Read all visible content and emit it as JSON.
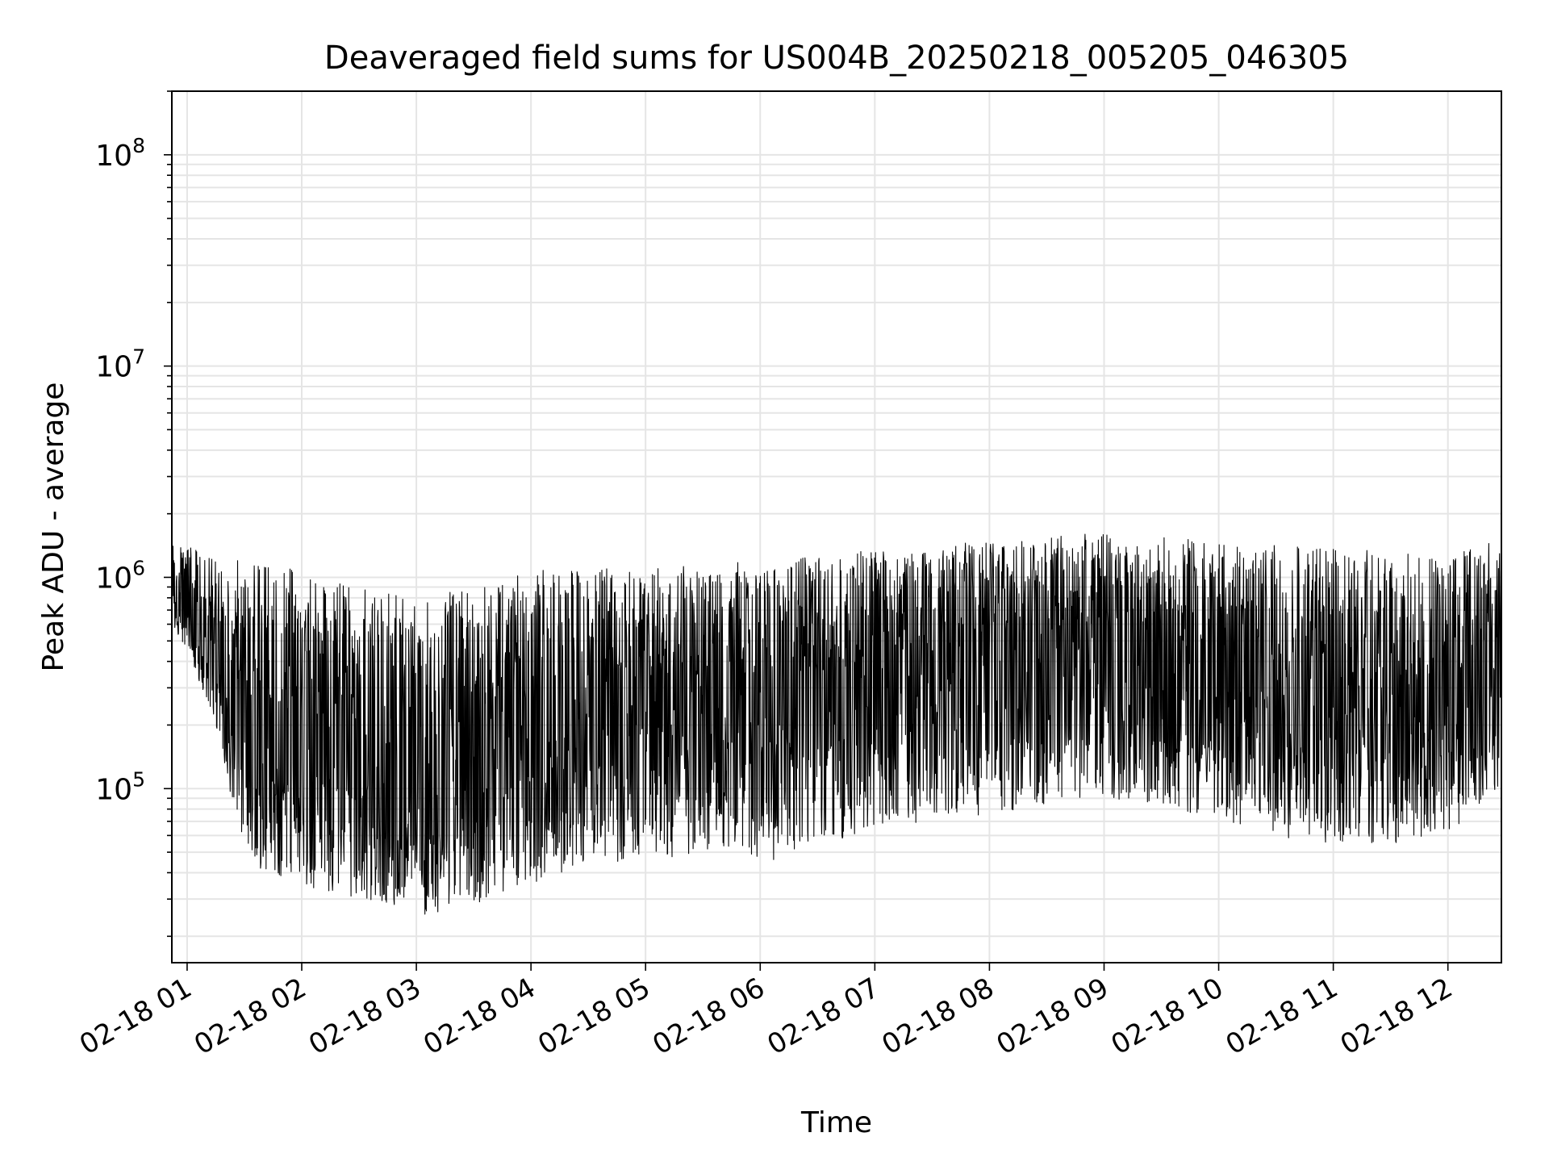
{
  "chart_data": {
    "type": "line",
    "title": "Deaveraged field sums for US004B_20250218_005205_046305",
    "xlabel": "Time",
    "ylabel": "Peak ADU - average",
    "yscale": "log",
    "ylim": [
      15000,
      200000000
    ],
    "xlim": [
      "02-18 00:52",
      "02-18 12:28"
    ],
    "grid": true,
    "line_color": "#000000",
    "grid_color": "#e5e5e5",
    "x_ticks": [
      "02-18 01",
      "02-18 02",
      "02-18 03",
      "02-18 04",
      "02-18 05",
      "02-18 06",
      "02-18 07",
      "02-18 08",
      "02-18 09",
      "02-18 10",
      "02-18 11",
      "02-18 12"
    ],
    "y_ticks": [
      {
        "value": 100000,
        "base": "10",
        "exp": "5"
      },
      {
        "value": 1000000,
        "base": "10",
        "exp": "6"
      },
      {
        "value": 10000000,
        "base": "10",
        "exp": "7"
      },
      {
        "value": 100000000,
        "base": "10",
        "exp": "8"
      }
    ],
    "series": [
      {
        "x": [
          "02-18 00:52",
          "02-18 01:00",
          "02-18 01:15",
          "02-18 01:30",
          "02-18 02:00",
          "02-18 02:30",
          "02-18 03:00",
          "02-18 03:30",
          "02-18 04:00",
          "02-18 04:30",
          "02-18 05:00",
          "02-18 05:30",
          "02-18 06:00",
          "02-18 06:30",
          "02-18 07:00",
          "02-18 07:30",
          "02-18 08:00",
          "02-18 08:30",
          "02-18 09:00",
          "02-18 09:30",
          "02-18 10:00",
          "02-18 10:30",
          "02-18 11:00",
          "02-18 11:30",
          "02-18 12:00",
          "02-18 12:28"
        ],
        "max": [
          1500000,
          1400000,
          1300000,
          1200000,
          1100000,
          900000,
          800000,
          900000,
          1100000,
          1100000,
          1100000,
          1150000,
          1200000,
          1250000,
          1350000,
          1400000,
          1500000,
          1600000,
          1600000,
          1550000,
          1500000,
          1450000,
          1400000,
          1300000,
          1300000,
          1600000
        ],
        "min": [
          600000,
          450000,
          200000,
          45000,
          35000,
          30000,
          25000,
          28000,
          35000,
          45000,
          45000,
          50000,
          45000,
          50000,
          65000,
          70000,
          75000,
          85000,
          90000,
          85000,
          70000,
          55000,
          55000,
          55000,
          60000,
          100000
        ],
        "typical": [
          900000,
          800000,
          500000,
          250000,
          150000,
          120000,
          100000,
          120000,
          200000,
          250000,
          250000,
          270000,
          300000,
          320000,
          380000,
          420000,
          480000,
          520000,
          500000,
          450000,
          380000,
          300000,
          280000,
          260000,
          280000,
          450000
        ]
      }
    ]
  }
}
